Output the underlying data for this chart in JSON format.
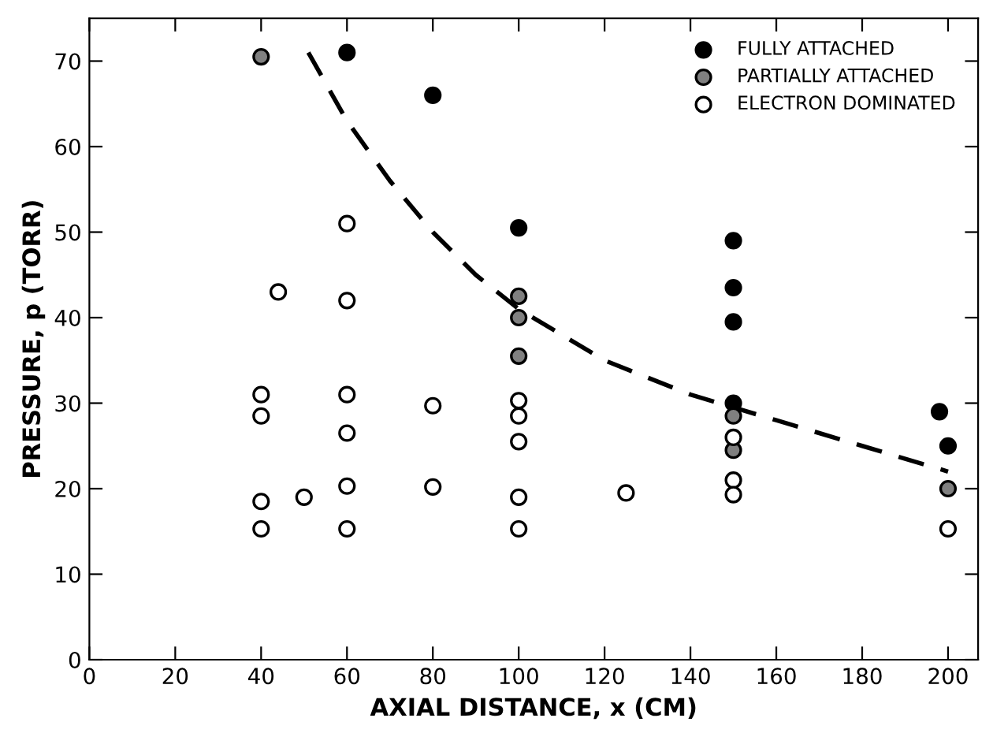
{
  "chart_data": {
    "type": "scatter",
    "xlabel": "AXIAL DISTANCE, x (CM)",
    "ylabel": "PRESSURE, p (TORR)",
    "xlim": [
      0,
      207
    ],
    "ylim": [
      0,
      75
    ],
    "xticks": [
      0,
      20,
      40,
      60,
      80,
      100,
      120,
      140,
      160,
      180,
      200
    ],
    "yticks": [
      0,
      10,
      20,
      30,
      40,
      50,
      60,
      70
    ],
    "grid": false,
    "legend": "top right",
    "marker": "circle",
    "series": [
      {
        "name": "FULLY ATTACHED",
        "color": "#000000",
        "x": [
          60,
          80,
          100,
          150,
          150,
          150,
          150,
          198,
          200
        ],
        "values": [
          71,
          66,
          50.5,
          49,
          43.5,
          39.5,
          30,
          29,
          25
        ]
      },
      {
        "name": "PARTIALLY ATTACHED",
        "color": "#808080",
        "x": [
          40,
          100,
          100,
          100,
          150,
          150,
          200
        ],
        "values": [
          70.5,
          42.5,
          40,
          35.5,
          28.5,
          24.5,
          20
        ]
      },
      {
        "name": "ELECTRON DOMINATED",
        "color": "#ffffff",
        "x": [
          40,
          40,
          40,
          40,
          44,
          50,
          60,
          60,
          60,
          60,
          60,
          60,
          80,
          80,
          100,
          100,
          100,
          100,
          100,
          125,
          150,
          150,
          150,
          200
        ],
        "values": [
          31,
          28.5,
          18.5,
          15.3,
          43,
          19,
          51,
          42,
          31,
          26.5,
          20.3,
          15.3,
          29.7,
          20.2,
          30.3,
          28.5,
          25.5,
          19,
          15.3,
          19.5,
          26,
          21,
          19.3,
          15.3
        ]
      },
      {
        "type": "line",
        "line_style": "dashed",
        "marker": "none",
        "color": "#000000",
        "x": [
          51,
          60,
          70,
          80,
          90,
          100,
          120,
          140,
          160,
          180,
          200
        ],
        "values": [
          71,
          63,
          56,
          50,
          45,
          41,
          35,
          31,
          28,
          25,
          22
        ]
      }
    ]
  }
}
